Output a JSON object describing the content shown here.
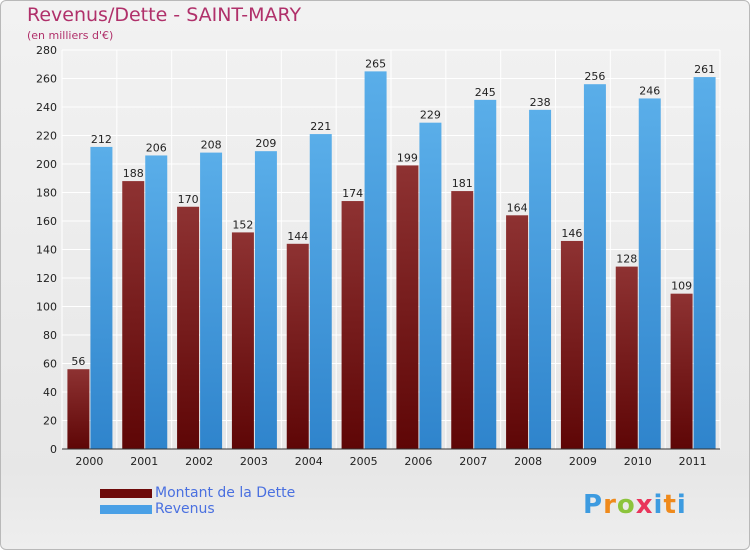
{
  "header": {
    "title": "Revenus/Dette - SAINT-MARY",
    "subtitle": "(en milliers d'€)"
  },
  "legend": {
    "items": [
      {
        "label": "Montant de la Dette",
        "color": "#6e0a0a"
      },
      {
        "label": "Revenus",
        "color": "#4aa0e6"
      }
    ]
  },
  "brand": {
    "text": "Proxiti"
  },
  "colors": {
    "title": "#b0306a",
    "debt_top": "#8e3232",
    "debt_bottom": "#5e0606",
    "revenue_top": "#5aaee9",
    "revenue_bottom": "#2f84cc",
    "grid": "#ffffff",
    "axis_text": "#222222"
  },
  "chart_data": {
    "type": "bar",
    "categories": [
      "2000",
      "2001",
      "2002",
      "2003",
      "2004",
      "2005",
      "2006",
      "2007",
      "2008",
      "2009",
      "2010",
      "2011"
    ],
    "series": [
      {
        "name": "Montant de la Dette",
        "values": [
          56,
          188,
          170,
          152,
          144,
          174,
          199,
          181,
          164,
          146,
          128,
          109
        ]
      },
      {
        "name": "Revenus",
        "values": [
          212,
          206,
          208,
          209,
          221,
          265,
          229,
          245,
          238,
          256,
          246,
          261
        ]
      }
    ],
    "ylim": [
      0,
      280
    ],
    "yticks": [
      0,
      20,
      40,
      60,
      80,
      100,
      120,
      140,
      160,
      180,
      200,
      220,
      240,
      260,
      280
    ],
    "grid": true,
    "legend_position": "bottom-left"
  }
}
